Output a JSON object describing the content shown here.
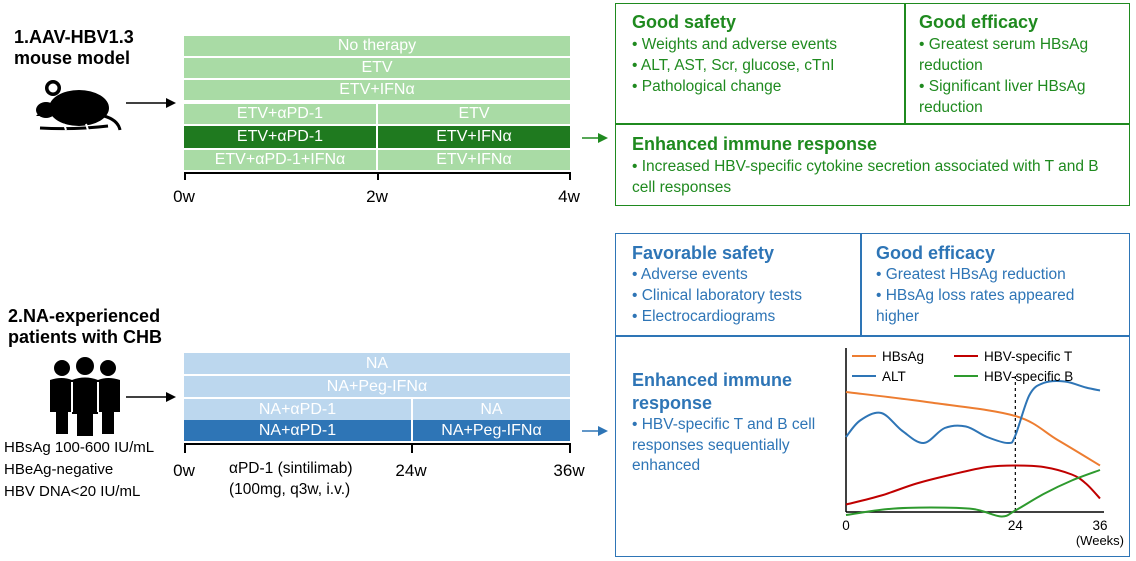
{
  "model": {
    "title": "1.AAV-HBV1.3\nmouse model",
    "bars": {
      "no_therapy": "No therapy",
      "etv": "ETV",
      "etv_ifn": "ETV+IFNα",
      "etv_apd1_a": "ETV+αPD-1",
      "etv_apd1_b": "ETV+αPD-1",
      "etv_apd1_ifn": "ETV+αPD-1+IFNα",
      "etv_right": "ETV",
      "etv_ifn_right_dark": "ETV+IFNα",
      "etv_ifn_right": "ETV+IFNα"
    },
    "ticks": [
      "0w",
      "2w",
      "4w"
    ],
    "safety": {
      "title": "Good safety",
      "items": [
        "• Weights and adverse events",
        "• ALT, AST, Scr, glucose, cTnI",
        "• Pathological change"
      ]
    },
    "efficacy": {
      "title": "Good efficacy",
      "items": [
        "• Greatest serum HBsAg reduction",
        "• Significant liver HBsAg reduction"
      ]
    },
    "immune": {
      "title": "Enhanced immune response",
      "text": "• Increased HBV-specific cytokine secretion associated with T and B cell responses"
    },
    "colors": {
      "dark": "#1f7a1f",
      "light": "#a9dba5",
      "text": "#1f8a1f"
    }
  },
  "patients": {
    "title": "2.NA-experienced\npatients with CHB",
    "criteria": [
      "HBsAg 100-600 IU/mL",
      "HBeAg-negative",
      "HBV DNA<20 IU/mL"
    ],
    "bars": {
      "na": "NA",
      "na_peg": "NA+Peg-IFNα",
      "na_apd1_a": "NA+αPD-1",
      "na_apd1_b": "NA+αPD-1",
      "na_right": "NA",
      "na_peg_right": "NA+Peg-IFNα"
    },
    "ticks": [
      "0w",
      "24w",
      "36w"
    ],
    "drug_note": "αPD-1 (sintilimab)\n(100mg, q3w, i.v.)",
    "safety": {
      "title": "Favorable safety",
      "items": [
        "• Adverse events",
        "• Clinical laboratory tests",
        "• Electrocardiograms"
      ]
    },
    "efficacy": {
      "title": "Good efficacy",
      "items": [
        "• Greatest HBsAg reduction",
        "• HBsAg loss rates appeared higher"
      ]
    },
    "immune": {
      "title": "Enhanced immune response",
      "text": "• HBV-specific T and B cell responses sequentially enhanced"
    },
    "colors": {
      "dark": "#2e75b6",
      "light": "#bcd7ee",
      "text": "#2e75b6"
    }
  },
  "chart_data": {
    "type": "line",
    "x_ticks": [
      "0",
      "24",
      "36"
    ],
    "x_unit": "(Weeks)",
    "xlim": [
      0,
      36
    ],
    "ylim": [
      0,
      10
    ],
    "vline_x": 24,
    "series": [
      {
        "name": "HBsAg",
        "color": "#ed7d31",
        "x": [
          0,
          12,
          24,
          30,
          36
        ],
        "y": [
          8.0,
          7.3,
          6.4,
          4.8,
          3.1
        ]
      },
      {
        "name": "ALT",
        "color": "#2e75b6",
        "x": [
          0,
          2,
          5,
          8,
          11,
          14,
          17,
          20,
          23,
          24,
          26,
          28,
          31,
          34,
          36
        ],
        "y": [
          5.0,
          6.1,
          6.6,
          5.4,
          4.6,
          5.6,
          5.7,
          5.0,
          4.6,
          5.1,
          7.8,
          8.6,
          8.7,
          8.3,
          8.1
        ]
      },
      {
        "name": "HBV-specific T",
        "color": "#c00000",
        "x": [
          0,
          5,
          10,
          15,
          20,
          24,
          28,
          32,
          34,
          36
        ],
        "y": [
          0.5,
          1.1,
          1.9,
          2.5,
          3.0,
          3.1,
          3.0,
          2.5,
          1.9,
          0.9
        ]
      },
      {
        "name": "HBV-specific B",
        "color": "#2e9a2e",
        "x": [
          0,
          6,
          12,
          18,
          22,
          24,
          28,
          32,
          36
        ],
        "y": [
          -0.2,
          0.2,
          0.3,
          0.2,
          -0.3,
          0.1,
          1.2,
          2.1,
          2.8
        ]
      }
    ]
  }
}
